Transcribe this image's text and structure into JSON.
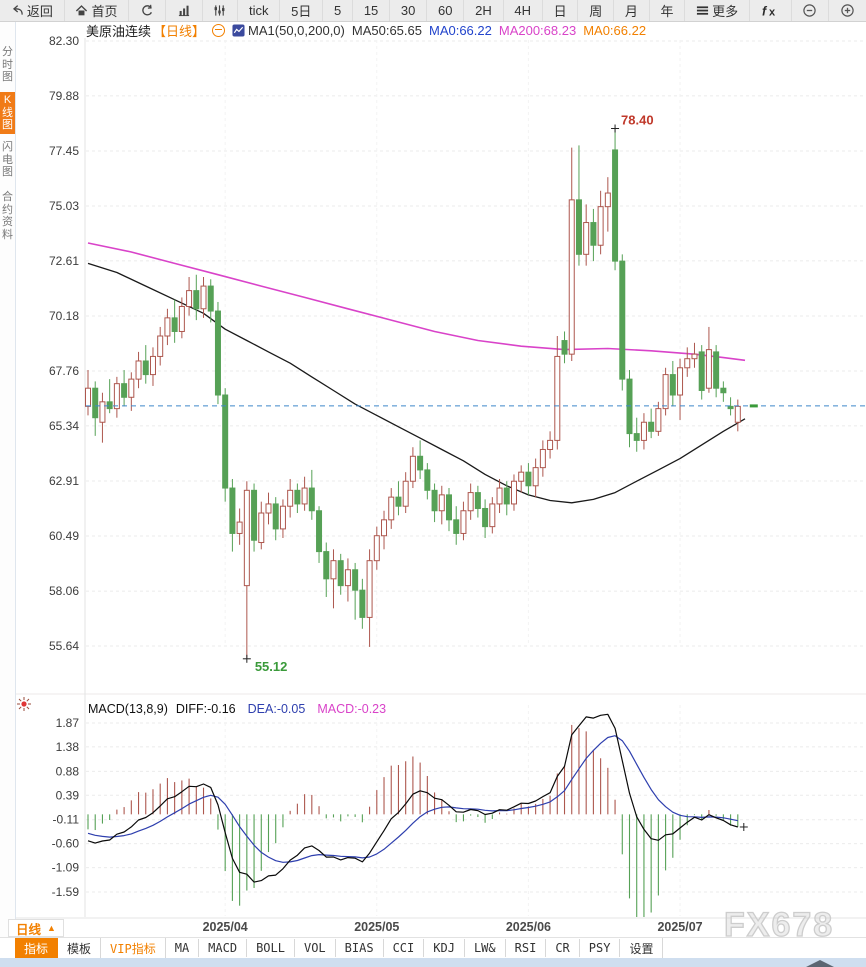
{
  "toolbar": {
    "items": [
      {
        "id": "back",
        "icon": "back",
        "label": "返回"
      },
      {
        "id": "home",
        "icon": "home",
        "label": "首页"
      },
      {
        "id": "refresh",
        "icon": "refresh",
        "label": ""
      },
      {
        "id": "bar-chart",
        "icon": "bars",
        "label": ""
      },
      {
        "id": "candle-settings",
        "icon": "sliders",
        "label": ""
      },
      {
        "id": "tick",
        "icon": "",
        "label": "tick"
      },
      {
        "id": "5-day",
        "icon": "",
        "label": "5日"
      },
      {
        "id": "5-min",
        "icon": "",
        "label": "5"
      },
      {
        "id": "15-min",
        "icon": "",
        "label": "15"
      },
      {
        "id": "30-min",
        "icon": "",
        "label": "30"
      },
      {
        "id": "60-min",
        "icon": "",
        "label": "60"
      },
      {
        "id": "2-hour",
        "icon": "",
        "label": "2H"
      },
      {
        "id": "4-hour",
        "icon": "",
        "label": "4H"
      },
      {
        "id": "daily",
        "icon": "",
        "label": "日"
      },
      {
        "id": "weekly",
        "icon": "",
        "label": "周"
      },
      {
        "id": "monthly",
        "icon": "",
        "label": "月"
      },
      {
        "id": "yearly",
        "icon": "",
        "label": "年"
      },
      {
        "id": "more",
        "icon": "more",
        "label": "更多"
      },
      {
        "id": "fx",
        "icon": "fx",
        "label": ""
      },
      {
        "id": "zoom-out",
        "icon": "zoom-out",
        "label": ""
      },
      {
        "id": "zoom-in",
        "icon": "zoom-in",
        "label": ""
      }
    ]
  },
  "sidebar": {
    "items": [
      {
        "id": "time-chart",
        "label": "分时图",
        "active": false
      },
      {
        "id": "kline-chart",
        "label": "K线图",
        "active": true
      },
      {
        "id": "lightning-chart",
        "label": "闪电图",
        "active": false
      },
      {
        "id": "contract-info",
        "label": "合约资料",
        "active": false
      }
    ]
  },
  "chart_header": {
    "symbol": "美原油连续",
    "period": "【日线】",
    "ma_settings": "MA1(50,0,200,0)",
    "ma50_label": "MA50:65.65",
    "ma0_blue_label": "MA0:66.22",
    "ma200_label": "MA200:68.23",
    "ma0_orange_label": "MA0:66.22"
  },
  "macd_header": {
    "title": "MACD(13,8,9)",
    "diff_label": "DIFF:-0.16",
    "dea_label": "DEA:-0.05",
    "macd_label": "MACD:-0.23"
  },
  "bottom": {
    "period_selector": "日线",
    "watermark": "FX678",
    "tabs": [
      {
        "id": "indicators",
        "label": "指标",
        "style": "active"
      },
      {
        "id": "templates",
        "label": "模板",
        "style": "normal"
      },
      {
        "id": "vip-indicators",
        "label": "VIP指标",
        "style": "vip"
      },
      {
        "id": "ma",
        "label": "MA",
        "style": "normal"
      },
      {
        "id": "macd",
        "label": "MACD",
        "style": "normal"
      },
      {
        "id": "boll",
        "label": "BOLL",
        "style": "normal"
      },
      {
        "id": "vol",
        "label": "VOL",
        "style": "normal"
      },
      {
        "id": "bias",
        "label": "BIAS",
        "style": "normal"
      },
      {
        "id": "cci",
        "label": "CCI",
        "style": "normal"
      },
      {
        "id": "kdj",
        "label": "KDJ",
        "style": "normal"
      },
      {
        "id": "lwr",
        "label": "LW&",
        "style": "normal"
      },
      {
        "id": "rsi",
        "label": "RSI",
        "style": "normal"
      },
      {
        "id": "cr",
        "label": "CR",
        "style": "normal"
      },
      {
        "id": "psy",
        "label": "PSY",
        "style": "normal"
      },
      {
        "id": "settings",
        "label": "设置",
        "style": "normal"
      }
    ]
  },
  "colors": {
    "up": "#ad574e",
    "down": "#56a156",
    "ma50": "#1a1a1a",
    "ma200": "#d943c9",
    "diff_line": "#0a0a0a",
    "dea_line": "#2e3fae",
    "price_line": "#3f86c9",
    "grid": "#ebebeb",
    "axis_text": "#3c3c3c",
    "accent_orange": "#f28000",
    "annotation_high": "#c0392b",
    "annotation_low": "#3a9a3a"
  },
  "chart_data": {
    "type": "candlestick",
    "title": "美原油连续 daily candlestick with MA(50), MA(200) and MACD(13,8,9)",
    "price_axis_labels": [
      82.3,
      79.88,
      77.45,
      75.03,
      72.61,
      70.18,
      67.76,
      65.34,
      62.91,
      60.49,
      58.06,
      55.64
    ],
    "macd_axis_labels": [
      1.87,
      1.38,
      0.88,
      0.39,
      -0.11,
      -0.6,
      -1.09,
      -1.59
    ],
    "x_axis_labels": [
      {
        "label": "2025/04",
        "index": 19
      },
      {
        "label": "2025/05",
        "index": 40
      },
      {
        "label": "2025/06",
        "index": 61
      },
      {
        "label": "2025/07",
        "index": 82
      }
    ],
    "last_price_line": 66.22,
    "high_annotation": {
      "label": "78.40",
      "value": 78.4,
      "index": 73
    },
    "low_annotation": {
      "label": "55.12",
      "value": 55.12,
      "index": 22
    },
    "macd_params": {
      "fast": 8,
      "slow": 13,
      "signal": 9
    },
    "candles_ohlc": [
      [
        66.2,
        67.8,
        65.8,
        67.0
      ],
      [
        67.0,
        67.3,
        64.9,
        65.7
      ],
      [
        65.5,
        66.8,
        64.6,
        66.4
      ],
      [
        66.4,
        67.4,
        65.9,
        66.1
      ],
      [
        66.1,
        67.5,
        65.7,
        67.2
      ],
      [
        67.2,
        67.8,
        66.2,
        66.6
      ],
      [
        66.6,
        67.7,
        66.0,
        67.4
      ],
      [
        67.4,
        68.6,
        67.0,
        68.2
      ],
      [
        68.2,
        68.9,
        67.2,
        67.6
      ],
      [
        67.6,
        68.8,
        67.1,
        68.4
      ],
      [
        68.4,
        69.7,
        68.0,
        69.3
      ],
      [
        69.3,
        70.5,
        68.9,
        70.1
      ],
      [
        70.1,
        70.9,
        69.0,
        69.5
      ],
      [
        69.5,
        71.0,
        69.2,
        70.6
      ],
      [
        70.6,
        71.9,
        70.2,
        71.3
      ],
      [
        71.3,
        72.0,
        70.0,
        70.5
      ],
      [
        70.5,
        71.9,
        70.1,
        71.5
      ],
      [
        71.5,
        71.8,
        69.9,
        70.4
      ],
      [
        70.4,
        70.8,
        66.3,
        66.7
      ],
      [
        66.7,
        67.0,
        62.0,
        62.6
      ],
      [
        62.6,
        63.0,
        59.8,
        60.6
      ],
      [
        60.6,
        61.7,
        60.1,
        61.1
      ],
      [
        58.3,
        62.9,
        55.12,
        62.5
      ],
      [
        62.5,
        62.8,
        59.8,
        60.3
      ],
      [
        60.2,
        62.0,
        59.9,
        61.5
      ],
      [
        61.5,
        62.4,
        61.0,
        61.9
      ],
      [
        61.9,
        62.2,
        60.3,
        60.8
      ],
      [
        60.8,
        62.1,
        60.4,
        61.8
      ],
      [
        61.8,
        63.0,
        61.3,
        62.5
      ],
      [
        62.5,
        62.8,
        61.5,
        61.9
      ],
      [
        61.9,
        63.1,
        61.6,
        62.6
      ],
      [
        62.6,
        63.4,
        61.2,
        61.6
      ],
      [
        61.6,
        61.8,
        59.3,
        59.8
      ],
      [
        59.8,
        60.2,
        57.8,
        58.6
      ],
      [
        58.6,
        59.9,
        57.3,
        59.4
      ],
      [
        59.4,
        59.7,
        57.9,
        58.3
      ],
      [
        58.3,
        59.5,
        57.6,
        59.0
      ],
      [
        59.0,
        59.3,
        56.8,
        58.1
      ],
      [
        58.1,
        58.6,
        56.4,
        56.9
      ],
      [
        56.9,
        59.9,
        55.6,
        59.4
      ],
      [
        59.4,
        60.9,
        59.0,
        60.5
      ],
      [
        60.5,
        61.6,
        59.9,
        61.2
      ],
      [
        61.2,
        62.6,
        60.8,
        62.2
      ],
      [
        62.2,
        62.9,
        61.4,
        61.8
      ],
      [
        61.8,
        63.3,
        61.5,
        62.9
      ],
      [
        62.9,
        64.4,
        62.6,
        64.0
      ],
      [
        64.0,
        64.7,
        63.0,
        63.4
      ],
      [
        63.4,
        63.7,
        62.1,
        62.5
      ],
      [
        62.5,
        62.8,
        61.1,
        61.6
      ],
      [
        61.6,
        62.7,
        61.0,
        62.3
      ],
      [
        62.3,
        62.6,
        60.7,
        61.2
      ],
      [
        61.2,
        61.8,
        60.1,
        60.6
      ],
      [
        60.6,
        62.0,
        60.3,
        61.6
      ],
      [
        61.6,
        62.8,
        61.2,
        62.4
      ],
      [
        62.4,
        62.7,
        61.3,
        61.7
      ],
      [
        61.7,
        62.1,
        60.4,
        60.9
      ],
      [
        60.9,
        62.2,
        60.6,
        61.9
      ],
      [
        61.9,
        63.0,
        61.5,
        62.6
      ],
      [
        62.6,
        62.9,
        61.4,
        61.9
      ],
      [
        61.9,
        63.2,
        61.6,
        62.9
      ],
      [
        62.9,
        63.6,
        62.4,
        63.3
      ],
      [
        63.3,
        63.7,
        62.3,
        62.7
      ],
      [
        62.7,
        63.9,
        62.2,
        63.5
      ],
      [
        63.5,
        64.7,
        63.1,
        64.3
      ],
      [
        64.3,
        65.1,
        63.9,
        64.7
      ],
      [
        64.7,
        69.3,
        64.3,
        68.4
      ],
      [
        69.1,
        69.5,
        68.1,
        68.5
      ],
      [
        68.5,
        77.6,
        68.2,
        75.3
      ],
      [
        75.3,
        77.7,
        72.4,
        72.9
      ],
      [
        72.9,
        75.1,
        72.4,
        74.3
      ],
      [
        74.3,
        74.9,
        72.6,
        73.3
      ],
      [
        73.3,
        75.7,
        72.9,
        75.0
      ],
      [
        75.0,
        76.3,
        73.9,
        75.6
      ],
      [
        77.5,
        78.4,
        72.2,
        72.6
      ],
      [
        72.6,
        72.9,
        66.9,
        67.4
      ],
      [
        67.4,
        67.8,
        64.4,
        65.0
      ],
      [
        65.0,
        65.7,
        64.2,
        64.7
      ],
      [
        64.7,
        65.9,
        64.3,
        65.5
      ],
      [
        65.5,
        66.1,
        64.8,
        65.1
      ],
      [
        65.1,
        66.4,
        64.9,
        66.1
      ],
      [
        66.1,
        67.9,
        65.8,
        67.6
      ],
      [
        67.6,
        68.2,
        66.2,
        66.7
      ],
      [
        66.7,
        68.3,
        65.6,
        67.9
      ],
      [
        67.9,
        68.8,
        67.5,
        68.3
      ],
      [
        68.3,
        69.0,
        67.9,
        68.5
      ],
      [
        68.6,
        68.9,
        66.5,
        66.9
      ],
      [
        67.0,
        69.7,
        66.8,
        68.7
      ],
      [
        68.6,
        68.9,
        66.6,
        67.0
      ],
      [
        67.0,
        67.3,
        66.4,
        66.8
      ],
      [
        66.2,
        66.6,
        65.8,
        66.1
      ],
      [
        65.5,
        66.5,
        65.1,
        66.2
      ]
    ],
    "ma50_points": [
      [
        0,
        72.5
      ],
      [
        4,
        72.1
      ],
      [
        8,
        71.5
      ],
      [
        12,
        70.9
      ],
      [
        16,
        70.3
      ],
      [
        19,
        69.6
      ],
      [
        22,
        69.1
      ],
      [
        25,
        68.6
      ],
      [
        28,
        68.1
      ],
      [
        31,
        67.5
      ],
      [
        34,
        66.9
      ],
      [
        37,
        66.3
      ],
      [
        40,
        65.8
      ],
      [
        43,
        65.3
      ],
      [
        46,
        64.8
      ],
      [
        49,
        64.3
      ],
      [
        52,
        63.8
      ],
      [
        55,
        63.2
      ],
      [
        58,
        62.7
      ],
      [
        61,
        62.3
      ],
      [
        64,
        62.05
      ],
      [
        67,
        61.95
      ],
      [
        70,
        62.1
      ],
      [
        73,
        62.4
      ],
      [
        76,
        62.9
      ],
      [
        79,
        63.4
      ],
      [
        82,
        63.9
      ],
      [
        85,
        64.5
      ],
      [
        88,
        65.1
      ],
      [
        91,
        65.65
      ]
    ],
    "ma200_points": [
      [
        0,
        73.4
      ],
      [
        6,
        73.0
      ],
      [
        12,
        72.5
      ],
      [
        18,
        72.0
      ],
      [
        24,
        71.5
      ],
      [
        30,
        71.0
      ],
      [
        36,
        70.5
      ],
      [
        42,
        70.0
      ],
      [
        48,
        69.5
      ],
      [
        54,
        69.1
      ],
      [
        60,
        68.85
      ],
      [
        66,
        68.7
      ],
      [
        72,
        68.75
      ],
      [
        78,
        68.65
      ],
      [
        84,
        68.5
      ],
      [
        88,
        68.35
      ],
      [
        91,
        68.23
      ]
    ]
  }
}
